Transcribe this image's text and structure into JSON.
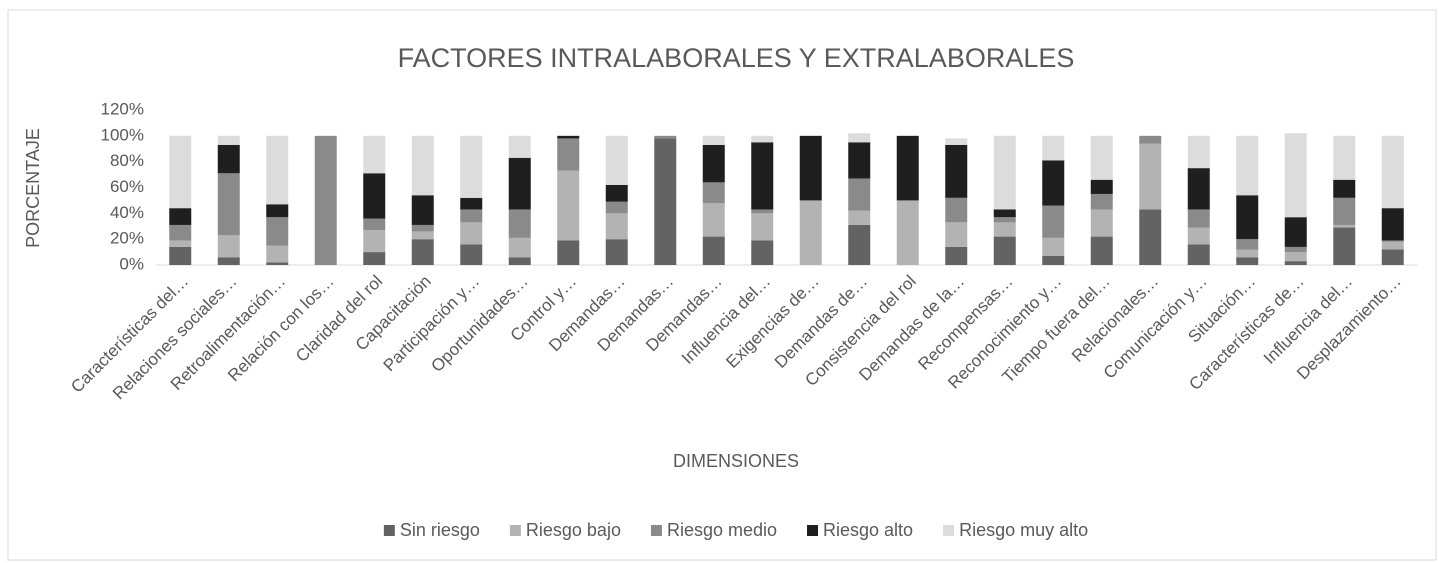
{
  "chart_data": {
    "type": "stacked_bar",
    "title": "FACTORES INTRALABORALES Y EXTRALABORALES",
    "x_label": "DIMENSIONES",
    "y_label": "PORCENTAJE",
    "categories": [
      "Características del…",
      "Relaciones sociales…",
      "Retroalimentación…",
      "Relación con los…",
      "Claridad del rol",
      "Capacitación",
      "Participación y…",
      "Oportunidades…",
      "Control y…",
      "Demandas…",
      "Demandas…",
      "Demandas…",
      "Influencia del…",
      "Exigencias de…",
      "Demandas de…",
      "Consistencia del rol",
      "Demandas de la…",
      "Recompensas…",
      "Reconocimiento y…",
      "Tiempo fuera del…",
      "Relacionales…",
      "Comunicación y…",
      "Situación…",
      "Características de…",
      "Influencia del…",
      "Desplazamiento…"
    ],
    "series": [
      {
        "name": "Sin riesgo",
        "color": "#636363",
        "values": [
          14,
          6,
          2,
          0,
          10,
          20,
          16,
          6,
          19,
          20,
          98,
          22,
          19,
          0,
          31,
          0,
          14,
          22,
          7,
          22,
          43,
          16,
          6,
          3,
          29,
          12
        ]
      },
      {
        "name": "Riesgo bajo",
        "color": "#b3b3b3",
        "values": [
          5,
          17,
          13,
          0,
          17,
          6,
          17,
          15,
          54,
          20,
          0,
          26,
          21,
          50,
          11,
          50,
          19,
          11,
          14,
          21,
          51,
          13,
          6,
          7,
          2,
          6
        ]
      },
      {
        "name": "Riesgo medio",
        "color": "#8a8a8a",
        "values": [
          12,
          48,
          22,
          100,
          9,
          5,
          10,
          22,
          25,
          9,
          2,
          16,
          3,
          0,
          25,
          0,
          19,
          4,
          25,
          12,
          6,
          14,
          8,
          4,
          21,
          1
        ]
      },
      {
        "name": "Riesgo alto",
        "color": "#1f1f1f",
        "values": [
          13,
          22,
          10,
          0,
          35,
          23,
          9,
          40,
          2,
          13,
          0,
          29,
          52,
          50,
          28,
          50,
          41,
          6,
          35,
          11,
          0,
          32,
          34,
          23,
          14,
          25
        ]
      },
      {
        "name": "Riesgo muy alto",
        "color": "#dcdcdc",
        "values": [
          56,
          7,
          53,
          0,
          29,
          46,
          48,
          17,
          0,
          38,
          0,
          7,
          5,
          0,
          7,
          0,
          5,
          57,
          19,
          34,
          0,
          25,
          46,
          65,
          34,
          56
        ]
      }
    ],
    "ylim": [
      0,
      120
    ],
    "yticks": [
      {
        "value": 0,
        "label": "0%"
      },
      {
        "value": 20,
        "label": "20%"
      },
      {
        "value": 40,
        "label": "40%"
      },
      {
        "value": 60,
        "label": "60%"
      },
      {
        "value": 80,
        "label": "80%"
      },
      {
        "value": 100,
        "label": "100%"
      },
      {
        "value": 120,
        "label": "120%"
      }
    ],
    "grid": false,
    "legend": "bottom"
  }
}
